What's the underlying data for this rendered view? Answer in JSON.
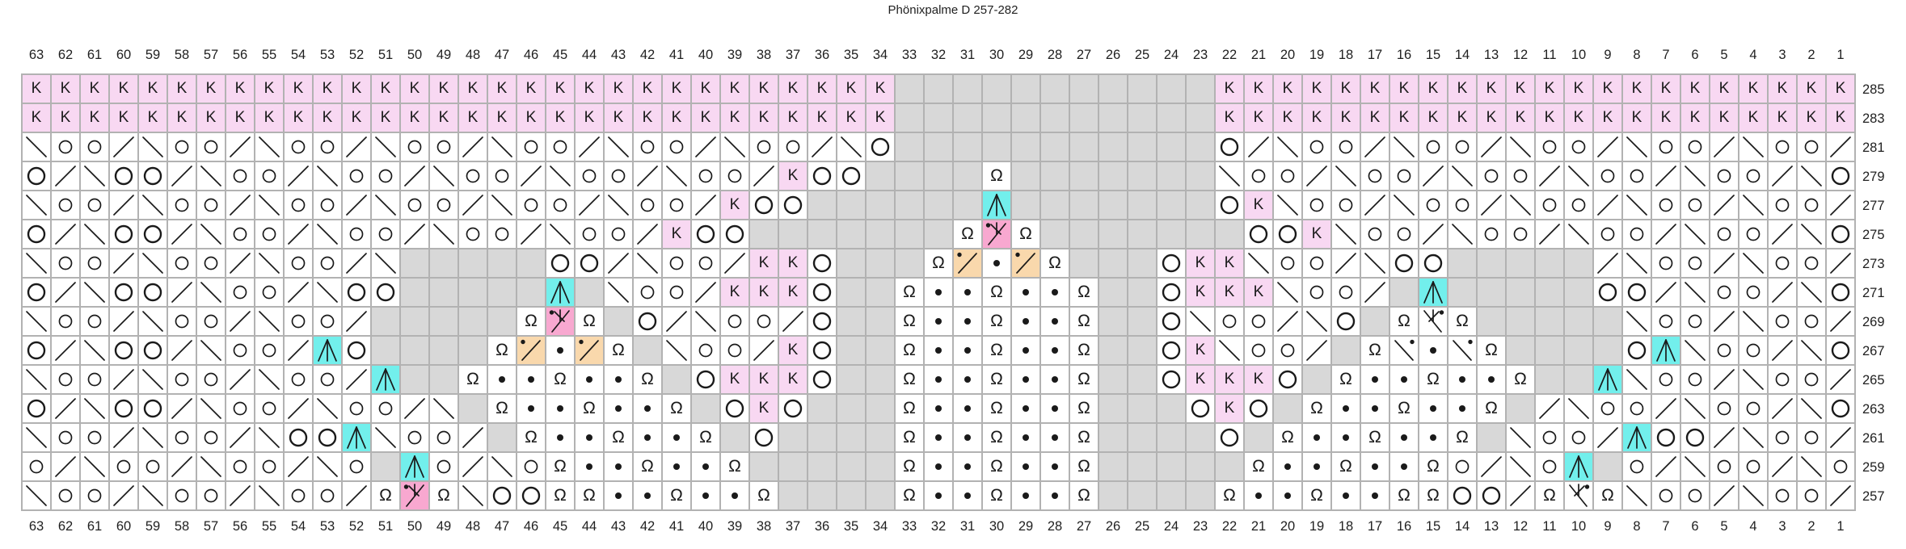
{
  "title": "Phönixpalme D 257-282",
  "colors": {
    "symbol": "#1a1a1a",
    "k_bg": "#f8d8f2",
    "no_stitch_bg": "#d8d8d8",
    "cdd_bg": "#72efec",
    "x_left_bg": "#f8a8d0",
    "dec_left_bg": "#f9d8ac",
    "grid_line": "#b2b2b2",
    "cell_bg": "#ffffff"
  },
  "chart_data": {
    "type": "table",
    "description": "Knitting lace chart, 63 stitches wide, rows 257-285 (odd rows charted), read right to left",
    "title": "Phönixpalme D 257-282",
    "column_labels": [
      63,
      62,
      61,
      60,
      59,
      58,
      57,
      56,
      55,
      54,
      53,
      52,
      51,
      50,
      49,
      48,
      47,
      46,
      45,
      44,
      43,
      42,
      41,
      40,
      39,
      38,
      37,
      36,
      35,
      34,
      33,
      32,
      31,
      30,
      29,
      28,
      27,
      26,
      25,
      24,
      23,
      22,
      21,
      20,
      19,
      18,
      17,
      16,
      15,
      14,
      13,
      12,
      11,
      10,
      9,
      8,
      7,
      6,
      5,
      4,
      3,
      2,
      1
    ],
    "column_labels_shown": "top and bottom",
    "row_labels_position": "right",
    "symbol_legend": {
      "K": "knit edge stitch (pink)",
      "n": "no stitch (gray)",
      "o": "yarn over (small circle)",
      "O": "yarn over (large circle)",
      "/": "k2tog right-leaning decrease",
      "\\": "ssk left-leaning decrease",
      ".": "purl dot",
      "t": "twisted stitch Ω",
      "c": "centered double decrease (cyan)",
      "xl": "double decrease with dot, left version (pink)",
      "xr": "double decrease with dot, right version (white)",
      "dl": "decrease with dot, left version (orange)",
      "dr": "decrease with dot, right version (white)"
    },
    "rows": [
      {
        "label": "285",
        "cells": "K K K K K K K K K K K K K K K K K K K K K K K K K K K K K K n n n n n n n n n n n K K K K K K K K K K K K K K K K K K K K K K"
      },
      {
        "label": "283",
        "cells": "K K K K K K K K K K K K K K K K K K K K K K K K K K K K K K n n n n n n n n n n n K K K K K K K K K K K K K K K K K K K K K K"
      },
      {
        "label": "281",
        "cells": "\\ o o / \\ o o / \\ o o / \\ o o / \\ o o / \\ o o / \\ o o / \\ O n n n n n n n n n n n O / \\ o o / \\ o o / \\ o o / \\ o o / \\ o o /"
      },
      {
        "label": "279",
        "cells": "O / \\ O O / \\ o o / \\ o o / \\ o o / \\ o o / \\ o o / K O O n n n n t n n n n n n n \\ o o / \\ o o / \\ o o / \\ o o / \\ o o / \\ O"
      },
      {
        "label": "277",
        "cells": "\\ o o / \\ o o / \\ o o / \\ o o / \\ o o / \\ o o / K O O n n n n n n c n n n n n n n O K \\ o o / \\ o o / \\ o o / \\ o o / \\ o o /"
      },
      {
        "label": "275",
        "cells": "O / \\ O O / \\ o o / \\ o o / \\ o o / \\ o o / K O O n n n n n n n t xl t n n n n n n n O O K \\ o o / \\ o o / \\ o o / \\ o o / \\ O"
      },
      {
        "label": "273",
        "cells": "\\ o o / \\ o o / \\ o o / \\ n n n n n O O / \\ o o / K K O n n n t dl . dl t n n n O K K \\ o o / \\ O O n n n n n / \\ o o / \\ o o /"
      },
      {
        "label": "271",
        "cells": "O / \\ O O / \\ o o / \\ O O n n n n n c n \\ o o / K K K O n n t . . t . . t n n O K K K \\ o o / n c n n n n n O O / \\ o o / \\ O"
      },
      {
        "label": "269",
        "cells": "\\ o o / \\ o o / \\ o o / n n n n n t xl t n O / \\ o o / O n n t . . t . . t n n O \\ o o / \\ O n t xr t n n n n n \\ o o / \\ o o /"
      },
      {
        "label": "267",
        "cells": "O / \\ O O / \\ o o / c O n n n n t dl . dl t n \\ o o / K O n n t . . t . . t n n O K \\ o o / n t dr . dr t n n n n O c \\ o o / \\ O"
      },
      {
        "label": "265",
        "cells": "\\ o o / \\ o o / \\ o o / c n n t . . t . . t n O K K K O n n t . . t . . t n n O K K K O n t . . t . . t n n c \\ o o / \\ o o /"
      },
      {
        "label": "263",
        "cells": "O / \\ O O / \\ o o / \\ o o / \\ n t . . t . . t n O K O n n n t . . t . . t n n n O K O n t . . t . . t n / \\ o o / \\ o o / \\ O"
      },
      {
        "label": "261",
        "cells": "\\ o o / \\ o o / \\ O O c \\ o o / n t . . t . . t n O n n n n t . . t . . t n n n n O n t . . t . . t n \\ o o / c O O / \\ o o /"
      },
      {
        "label": "259",
        "cells": "o / \\ o o / \\ o o / \\ o n c o / \\ o t . . t . . t n n n n n t . . t . . t n n n n n t . . t . . t o / \\ o c n o / \\ o o / \\ o"
      },
      {
        "label": "257",
        "cells": "\\ o o / \\ o o / \\ o o / t xl t \\ O O t t . . t . . t n n n n t . . t . . t n n n n t . . t . . t t O O / t xr t \\ o o / \\ o o /"
      }
    ]
  }
}
